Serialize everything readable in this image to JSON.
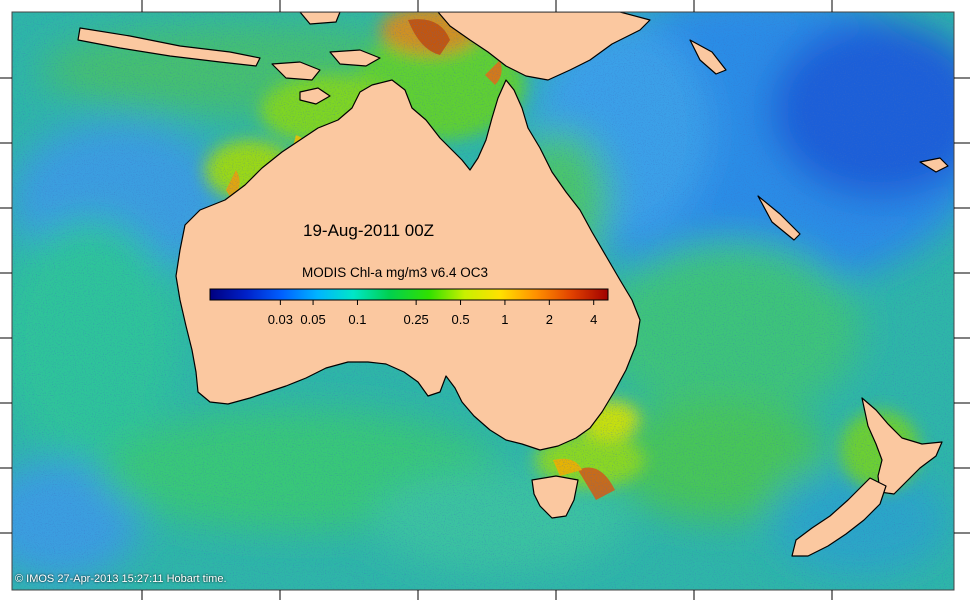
{
  "map": {
    "date_label": "19-Aug-2011 00Z",
    "legend": {
      "title": "MODIS Chl-a mg/m3 v6.4 OC3",
      "ticks": [
        {
          "label": "0.03",
          "value": 0.03
        },
        {
          "label": "0.05",
          "value": 0.05
        },
        {
          "label": "0.1",
          "value": 0.1
        },
        {
          "label": "0.25",
          "value": 0.25
        },
        {
          "label": "0.5",
          "value": 0.5
        },
        {
          "label": "1",
          "value": 1
        },
        {
          "label": "2",
          "value": 2
        },
        {
          "label": "4",
          "value": 4
        }
      ],
      "range": [
        0.01,
        5
      ],
      "scale": "log",
      "colormap": [
        "#000080",
        "#0020c8",
        "#0060ff",
        "#00b4ff",
        "#00e6c8",
        "#00d050",
        "#30e000",
        "#c8f000",
        "#ffe000",
        "#ff9000",
        "#e04000",
        "#a00000"
      ]
    },
    "credit": "© IMOS 27-Apr-2013 15:27:11 Hobart time.",
    "colors": {
      "land": "#fbc8a0",
      "ocean_offshore": "#2eb6a8",
      "ocean_tropical_west_pacific": "#1a5ed8",
      "coastal_high": "#e65c00"
    }
  }
}
